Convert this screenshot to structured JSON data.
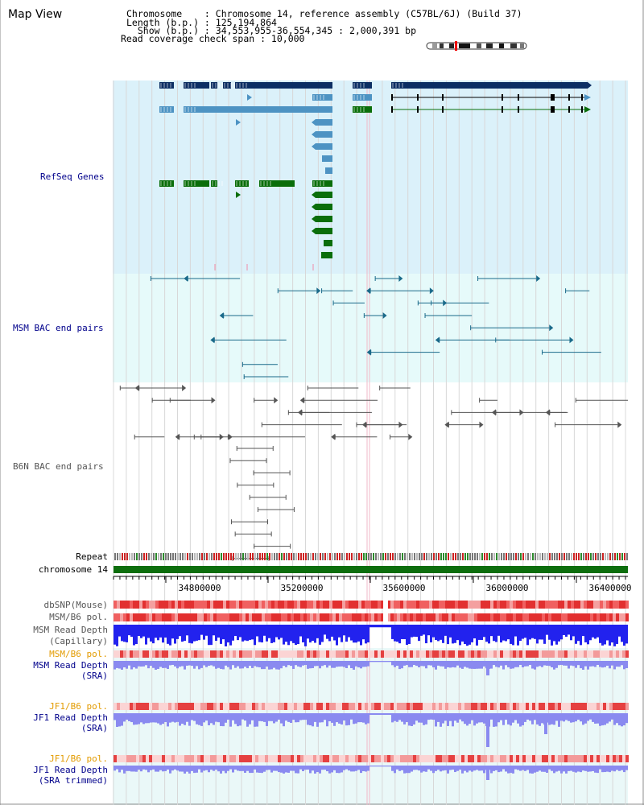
{
  "header": {
    "title": "Map View",
    "chromosome": "Chromosome    : Chromosome 14, reference assembly (C57BL/6J) (Build 37)",
    "length": "Length (b.p.) : 125,194,864",
    "show": "  Show (b.p.) : 34,553,955-36,554,345 : 2,000,391 bp",
    "coverage": "Read coverage check span : 10,000"
  },
  "tracks": {
    "refseq": "RefSeq Genes",
    "msm_bac": "MSM BAC end pairs",
    "b6n_bac": "B6N BAC end pairs",
    "repeat": "Repeat",
    "chromosome": "chromosome 14",
    "dbsnp": "dbSNP(Mouse)",
    "msm_b6_pol_1": "MSM/B6 pol.",
    "msm_depth_cap_1": "MSM Read Depth",
    "msm_depth_cap_2": "(Capillary)",
    "msm_b6_pol_2": "MSM/B6 pol.",
    "msm_depth_sra_1": "MSM Read Depth",
    "msm_depth_sra_2": "(SRA)",
    "jf1_b6_pol_1": "JF1/B6 pol.",
    "jf1_depth_sra_1": "JF1 Read Depth",
    "jf1_depth_sra_2": "(SRA)",
    "jf1_b6_pol_2": "JF1/B6 pol.",
    "jf1_depth_trim_1": "JF1 Read Depth",
    "jf1_depth_trim_2": "(SRA trimmed)"
  },
  "axis": {
    "ticks": [
      "34800000",
      "35200000",
      "35600000",
      "36000000",
      "36400000"
    ]
  },
  "colors": {
    "refseq_bg": "#dbf1fa",
    "msm_bg": "#e6fafa",
    "gene_dark": "#0d2f64",
    "gene_light": "#4d93c3",
    "gene_green": "#0a6e0a",
    "bac_msm": "#1a6a8a",
    "bac_b6n": "#555555",
    "chrom_bar": "#0d6e0d",
    "depth_blue": "#2222ee",
    "depth_light": "#8a8af0"
  }
}
